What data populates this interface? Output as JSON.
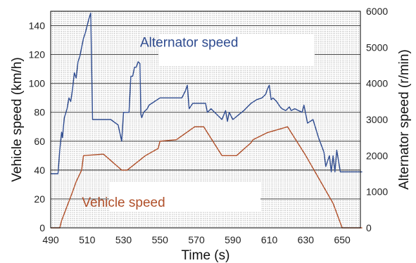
{
  "chart_data": {
    "type": "line",
    "xlabel": "Time (s)",
    "ylabel_left": "Vehicle speed (km/h)",
    "ylabel_right": "Alternator speed (r/min)",
    "xlim": [
      490,
      660
    ],
    "ylim_left": [
      0,
      150
    ],
    "ylim_right": [
      0,
      6000
    ],
    "x_ticks": [
      "490",
      "510",
      "530",
      "550",
      "570",
      "590",
      "610",
      "630",
      "650"
    ],
    "y_left_ticks": [
      "0",
      "20",
      "40",
      "60",
      "80",
      "100",
      "120",
      "140"
    ],
    "y_right_ticks": [
      "0",
      "1000",
      "2000",
      "3000",
      "4000",
      "5000",
      "6000"
    ],
    "grid": true,
    "colors": {
      "vehicle": "#b0502a",
      "alternator": "#2e4b8f"
    },
    "series": [
      {
        "name": "Vehicle speed",
        "axis": "left",
        "label_x": 530,
        "label_y": 18,
        "x": [
          490,
          495,
          496,
          502,
          504,
          507,
          508,
          518,
          519,
          529,
          532,
          542,
          549,
          550,
          559,
          569,
          571,
          574,
          584,
          592,
          600,
          601,
          609,
          620,
          630,
          645,
          650,
          661
        ],
        "y": [
          0,
          0,
          5,
          25,
          32,
          40,
          50,
          51,
          51,
          40,
          40,
          50,
          55,
          60,
          61,
          70,
          70,
          70,
          50,
          50,
          59,
          61,
          66,
          70,
          50,
          17,
          0,
          0
        ]
      },
      {
        "name": "Alternator speed",
        "axis": "right",
        "label_x": 566,
        "label_y": 5150,
        "x": [
          490,
          494,
          495,
          496,
          496.5,
          497,
          497.5,
          499,
          500,
          501,
          502,
          503,
          504,
          505,
          506,
          507,
          508,
          509,
          511,
          512,
          513,
          514,
          523,
          527,
          529,
          530,
          533,
          534,
          535,
          536,
          537,
          538,
          539,
          539.5,
          540,
          541,
          543,
          544,
          550,
          562,
          564,
          565,
          566,
          568,
          575,
          576,
          578,
          584,
          586,
          587,
          588,
          590,
          596,
          598,
          600,
          603,
          606,
          608,
          609,
          610,
          611,
          612,
          614,
          616,
          617,
          619,
          621,
          622,
          624,
          628,
          629,
          631,
          634,
          637,
          640,
          641,
          643,
          644,
          645,
          646,
          647,
          649,
          652,
          661
        ],
        "y": [
          1500,
          1500,
          2150,
          2650,
          2500,
          2800,
          3050,
          3300,
          3600,
          3500,
          3850,
          4300,
          4150,
          4600,
          4750,
          5000,
          5250,
          5400,
          5800,
          5950,
          3000,
          3000,
          3000,
          2850,
          2400,
          3200,
          3200,
          4200,
          4200,
          4450,
          4450,
          4600,
          4550,
          3150,
          3050,
          3200,
          3300,
          3400,
          3600,
          3600,
          3800,
          3950,
          3300,
          3450,
          3450,
          3200,
          3300,
          3000,
          3250,
          2950,
          3200,
          3000,
          3250,
          3350,
          3450,
          3550,
          3600,
          3700,
          3850,
          3950,
          3550,
          3600,
          3500,
          3350,
          3300,
          3250,
          3350,
          3250,
          3300,
          3200,
          3400,
          2900,
          3000,
          2500,
          2100,
          1700,
          2000,
          1550,
          2000,
          1550,
          2150,
          1550,
          1550,
          1550
        ]
      }
    ]
  }
}
